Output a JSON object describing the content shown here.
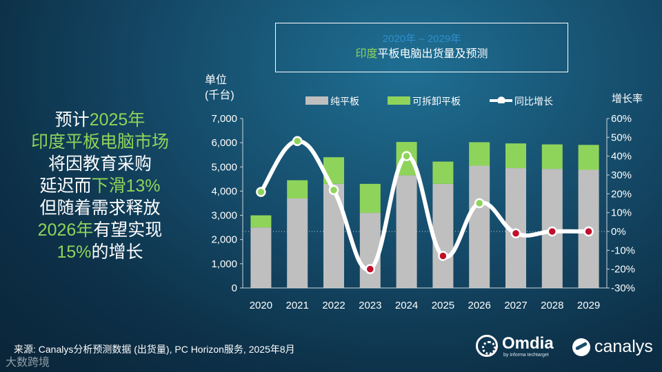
{
  "title": {
    "line1": "2020年 – 2029年",
    "line2_pre": "印度",
    "line2_rest": "平板电脑出货量及预测"
  },
  "headline": {
    "l1_a": "预计",
    "l1_b": "2025年",
    "l2": "印度平板电脑市场",
    "l3": "将因教育采购",
    "l4_a": "延迟而",
    "l4_b": "下滑13%",
    "l5": "但随着需求释放",
    "l6_a": "2026年",
    "l6_b": "有望实现",
    "l7_a": "15%",
    "l7_b": "的增长"
  },
  "footer": {
    "source": "来源: Canalys分析预测数据 (出货量), PC Horizon服务, 2025年8月",
    "watermark": "大数跨境"
  },
  "logos": {
    "omdia": "Omdia",
    "omdia_sub": "by informa techtarget",
    "canalys": "canalys"
  },
  "colors": {
    "pure_tablet": "#bfbfbf",
    "detachable": "#8fd45a",
    "growth_line": "#ffffff",
    "marker_neg": "#c0102a",
    "marker_pos": "#8fd45a",
    "accent_green": "#8fd45a",
    "title_blue": "#2e8fd0"
  },
  "chart_data": {
    "type": "bar",
    "stacked": true,
    "title": "2020年 – 2029年 印度平板电脑出货量及预测",
    "ylabel": "单位\n(千台)",
    "ylabel_line1": "单位",
    "ylabel_line2": "(千台)",
    "y2label": "增长率",
    "ylim": [
      0,
      7000
    ],
    "y2lim": [
      -30,
      60
    ],
    "yticks": [
      "0",
      "1,000",
      "2,000",
      "3,000",
      "4,000",
      "5,000",
      "6,000",
      "7,000"
    ],
    "y2ticks": [
      "-30%",
      "-20%",
      "-10%",
      "0%",
      "10%",
      "20%",
      "30%",
      "40%",
      "50%",
      "60%"
    ],
    "categories": [
      "2020",
      "2021",
      "2022",
      "2023",
      "2024",
      "2025",
      "2026",
      "2027",
      "2028",
      "2029"
    ],
    "series": [
      {
        "name": "纯平板",
        "type": "bar",
        "values": [
          2500,
          3700,
          4300,
          3100,
          4650,
          4300,
          5050,
          4950,
          4920,
          4880
        ]
      },
      {
        "name": "可拆卸平板",
        "type": "bar",
        "values": [
          500,
          750,
          1100,
          1200,
          1380,
          920,
          970,
          1020,
          1010,
          1030
        ]
      },
      {
        "name": "同比增长",
        "type": "line",
        "axis": "right",
        "values": [
          21,
          48,
          22,
          -20,
          40,
          -13,
          15,
          -1,
          0,
          0
        ]
      }
    ]
  }
}
